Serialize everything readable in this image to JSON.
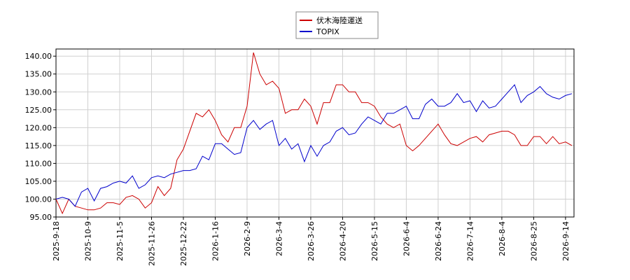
{
  "chart_data": {
    "type": "line",
    "categories": [
      "2025-9-18",
      null,
      null,
      null,
      null,
      "2025-10-9",
      null,
      null,
      null,
      null,
      "2025-11-5",
      null,
      null,
      null,
      null,
      "2025-11-26",
      null,
      null,
      null,
      null,
      "2025-12-22",
      null,
      null,
      null,
      null,
      "2026-1-16",
      null,
      null,
      null,
      null,
      "2026-2-9",
      null,
      null,
      null,
      null,
      "2026-3-4",
      null,
      null,
      null,
      null,
      "2026-3-26",
      null,
      null,
      null,
      null,
      "2026-4-20",
      null,
      null,
      null,
      null,
      "2026-5-15",
      null,
      null,
      null,
      null,
      "2026-6-4",
      null,
      null,
      null,
      null,
      "2026-6-24",
      null,
      null,
      null,
      null,
      "2026-7-14",
      null,
      null,
      null,
      null,
      "2026-8-4",
      null,
      null,
      null,
      null,
      "2026-8-25",
      null,
      null,
      null,
      null,
      "2026-9-14",
      null
    ],
    "series": [
      {
        "name": "伏木海陸運送",
        "color": "#cc0000",
        "values": [
          100,
          96,
          100,
          98,
          97.5,
          97,
          97,
          97.5,
          99,
          99,
          98.5,
          100.5,
          101,
          100,
          97.5,
          99,
          103.5,
          101,
          103,
          111,
          114,
          119,
          124,
          123,
          125,
          122,
          118,
          116,
          120,
          120,
          126,
          141,
          135,
          132,
          133,
          131,
          124,
          125,
          125,
          128,
          126,
          121,
          127,
          127,
          132,
          132,
          130,
          130,
          127,
          127,
          126,
          123,
          121,
          120,
          121,
          115,
          113.5,
          115,
          117,
          119,
          121,
          118,
          115.5,
          115,
          116,
          117,
          117.5,
          116,
          118,
          118.5,
          119,
          119,
          118,
          115,
          115,
          117.5,
          117.5,
          115.5,
          117.5,
          115.5,
          116,
          115
        ]
      },
      {
        "name": "TOPIX",
        "color": "#0000cc",
        "values": [
          100,
          100.5,
          100,
          98,
          102,
          103,
          99.5,
          103,
          103.5,
          104.5,
          105,
          104.5,
          106.5,
          103,
          104,
          106,
          106.5,
          106,
          107,
          107.5,
          108,
          108,
          108.5,
          112,
          111,
          115.5,
          115.5,
          114,
          112.5,
          113,
          120,
          122,
          119.5,
          121,
          122,
          115,
          117,
          114,
          115.5,
          110.5,
          115,
          112,
          115,
          116,
          119,
          120,
          118,
          118.5,
          121,
          123,
          122,
          121,
          124,
          124,
          125,
          126,
          122.5,
          122.5,
          126.5,
          128,
          126,
          126,
          127,
          129.5,
          127,
          127.5,
          124.5,
          127.5,
          125.5,
          126,
          128,
          130,
          132,
          127,
          129,
          130,
          131.5,
          129.5,
          128.5,
          128,
          129,
          129.5
        ]
      }
    ],
    "ylim": [
      95,
      142
    ],
    "yticks": [
      {
        "value": 95,
        "label": "95.00"
      },
      {
        "value": 100,
        "label": "100.00"
      },
      {
        "value": 105,
        "label": "105.00"
      },
      {
        "value": 110,
        "label": "110.00"
      },
      {
        "value": 115,
        "label": "115.00"
      },
      {
        "value": 120,
        "label": "120.00"
      },
      {
        "value": 125,
        "label": "125.00"
      },
      {
        "value": 130,
        "label": "130.00"
      },
      {
        "value": 135,
        "label": "135.00"
      },
      {
        "value": 140,
        "label": "140.00"
      }
    ],
    "grid": true,
    "legend": "top"
  }
}
